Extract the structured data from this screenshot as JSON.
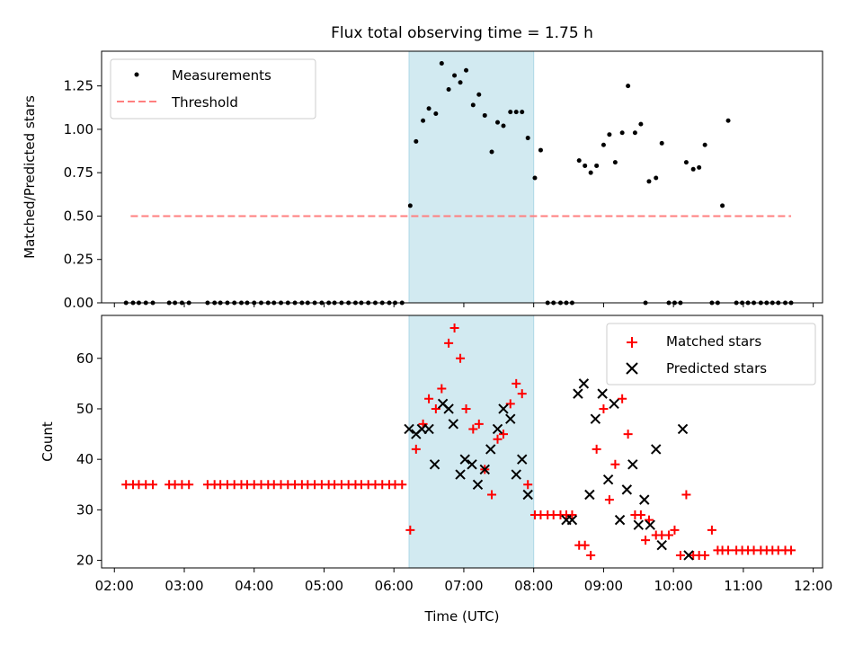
{
  "title": "Flux total observing time = 1.75 h",
  "chart_data": [
    {
      "type": "scatter",
      "ylabel": "Matched/Predicted stars",
      "ylim": [
        0,
        1.45
      ],
      "yticks": [
        "0.00",
        "0.25",
        "0.50",
        "0.75",
        "1.00",
        "1.25"
      ],
      "ytick_values": [
        0,
        0.25,
        0.5,
        0.75,
        1.0,
        1.25
      ],
      "xlim": [
        "01:49",
        "12:08"
      ],
      "shaded_region": {
        "from": "06:13",
        "to": "08:00",
        "color": "#add8e6"
      },
      "legend": {
        "placement": "top-left",
        "entries": [
          {
            "label": "Measurements",
            "marker": "dot",
            "color": "#000000"
          },
          {
            "label": "Threshold",
            "marker": "dashed-line",
            "color": "#ff7f7f"
          }
        ]
      },
      "threshold": {
        "name": "Threshold",
        "value": 0.5,
        "from": "02:14",
        "to": "11:41"
      },
      "series": [
        {
          "name": "Measurements",
          "color": "#000000",
          "points": [
            [
              "02:10",
              0
            ],
            [
              "02:16",
              0
            ],
            [
              "02:21",
              0
            ],
            [
              "02:27",
              0
            ],
            [
              "02:33",
              0
            ],
            [
              "02:47",
              0
            ],
            [
              "02:52",
              0
            ],
            [
              "02:58",
              0
            ],
            [
              "03:04",
              0
            ],
            [
              "03:20",
              0
            ],
            [
              "03:26",
              0
            ],
            [
              "03:31",
              0
            ],
            [
              "03:37",
              0
            ],
            [
              "03:43",
              0
            ],
            [
              "03:49",
              0
            ],
            [
              "03:54",
              0
            ],
            [
              "04:00",
              0
            ],
            [
              "04:06",
              0
            ],
            [
              "04:12",
              0
            ],
            [
              "04:17",
              0
            ],
            [
              "04:23",
              0
            ],
            [
              "04:29",
              0
            ],
            [
              "04:35",
              0
            ],
            [
              "04:41",
              0
            ],
            [
              "04:46",
              0
            ],
            [
              "04:52",
              0
            ],
            [
              "04:58",
              0
            ],
            [
              "05:04",
              0
            ],
            [
              "05:09",
              0
            ],
            [
              "05:15",
              0
            ],
            [
              "05:21",
              0
            ],
            [
              "05:27",
              0
            ],
            [
              "05:32",
              0
            ],
            [
              "05:38",
              0
            ],
            [
              "05:44",
              0
            ],
            [
              "05:50",
              0
            ],
            [
              "05:56",
              0
            ],
            [
              "06:01",
              0
            ],
            [
              "06:07",
              0
            ],
            [
              "06:14",
              0.56
            ],
            [
              "06:19",
              0.93
            ],
            [
              "06:25",
              1.05
            ],
            [
              "06:30",
              1.12
            ],
            [
              "06:36",
              1.09
            ],
            [
              "06:41",
              1.38
            ],
            [
              "06:47",
              1.23
            ],
            [
              "06:52",
              1.31
            ],
            [
              "06:57",
              1.27
            ],
            [
              "07:02",
              1.34
            ],
            [
              "07:08",
              1.14
            ],
            [
              "07:13",
              1.2
            ],
            [
              "07:18",
              1.08
            ],
            [
              "07:24",
              0.87
            ],
            [
              "07:29",
              1.04
            ],
            [
              "07:34",
              1.02
            ],
            [
              "07:40",
              1.1
            ],
            [
              "07:45",
              1.1
            ],
            [
              "07:50",
              1.1
            ],
            [
              "07:55",
              0.95
            ],
            [
              "08:01",
              0.72
            ],
            [
              "08:06",
              0.88
            ],
            [
              "08:12",
              0
            ],
            [
              "08:17",
              0
            ],
            [
              "08:23",
              0
            ],
            [
              "08:28",
              0
            ],
            [
              "08:33",
              0
            ],
            [
              "08:39",
              0.82
            ],
            [
              "08:44",
              0.79
            ],
            [
              "08:49",
              0.75
            ],
            [
              "08:54",
              0.79
            ],
            [
              "09:00",
              0.91
            ],
            [
              "09:05",
              0.97
            ],
            [
              "09:10",
              0.81
            ],
            [
              "09:16",
              0.98
            ],
            [
              "09:21",
              1.25
            ],
            [
              "09:27",
              0.98
            ],
            [
              "09:32",
              1.03
            ],
            [
              "09:36",
              0
            ],
            [
              "09:39",
              0.7
            ],
            [
              "09:45",
              0.72
            ],
            [
              "09:50",
              0.92
            ],
            [
              "09:56",
              0
            ],
            [
              "10:01",
              0
            ],
            [
              "10:06",
              0
            ],
            [
              "10:11",
              0.81
            ],
            [
              "10:17",
              0.77
            ],
            [
              "10:22",
              0.78
            ],
            [
              "10:27",
              0.91
            ],
            [
              "10:33",
              0
            ],
            [
              "10:38",
              0
            ],
            [
              "10:42",
              0.56
            ],
            [
              "10:47",
              1.05
            ],
            [
              "10:54",
              0
            ],
            [
              "10:59",
              0
            ],
            [
              "11:04",
              0
            ],
            [
              "11:09",
              0
            ],
            [
              "11:15",
              0
            ],
            [
              "11:20",
              0
            ],
            [
              "11:25",
              0
            ],
            [
              "11:30",
              0
            ],
            [
              "11:36",
              0
            ],
            [
              "11:41",
              0
            ]
          ]
        }
      ]
    },
    {
      "type": "scatter",
      "xlabel": "Time (UTC)",
      "ylabel": "Count",
      "ylim": [
        18.5,
        68.5
      ],
      "yticks": [
        "20",
        "30",
        "40",
        "50",
        "60"
      ],
      "ytick_values": [
        20,
        30,
        40,
        50,
        60
      ],
      "xlim": [
        "01:49",
        "12:08"
      ],
      "xticks": [
        "02:00",
        "03:00",
        "04:00",
        "05:00",
        "06:00",
        "07:00",
        "08:00",
        "09:00",
        "10:00",
        "11:00",
        "12:00"
      ],
      "shaded_region": {
        "from": "06:13",
        "to": "08:00",
        "color": "#add8e6"
      },
      "legend": {
        "placement": "top-right",
        "entries": [
          {
            "label": "Matched stars",
            "marker": "plus",
            "color": "#ff0000"
          },
          {
            "label": "Predicted stars",
            "marker": "x",
            "color": "#000000"
          }
        ]
      },
      "series": [
        {
          "name": "Matched stars",
          "color": "#ff0000",
          "marker": "plus",
          "points": [
            [
              "02:10",
              35
            ],
            [
              "02:16",
              35
            ],
            [
              "02:21",
              35
            ],
            [
              "02:27",
              35
            ],
            [
              "02:33",
              35
            ],
            [
              "02:47",
              35
            ],
            [
              "02:52",
              35
            ],
            [
              "02:58",
              35
            ],
            [
              "03:04",
              35
            ],
            [
              "03:20",
              35
            ],
            [
              "03:26",
              35
            ],
            [
              "03:31",
              35
            ],
            [
              "03:37",
              35
            ],
            [
              "03:43",
              35
            ],
            [
              "03:49",
              35
            ],
            [
              "03:54",
              35
            ],
            [
              "04:00",
              35
            ],
            [
              "04:06",
              35
            ],
            [
              "04:12",
              35
            ],
            [
              "04:17",
              35
            ],
            [
              "04:23",
              35
            ],
            [
              "04:29",
              35
            ],
            [
              "04:35",
              35
            ],
            [
              "04:41",
              35
            ],
            [
              "04:46",
              35
            ],
            [
              "04:52",
              35
            ],
            [
              "04:58",
              35
            ],
            [
              "05:04",
              35
            ],
            [
              "05:09",
              35
            ],
            [
              "05:15",
              35
            ],
            [
              "05:21",
              35
            ],
            [
              "05:27",
              35
            ],
            [
              "05:32",
              35
            ],
            [
              "05:38",
              35
            ],
            [
              "05:44",
              35
            ],
            [
              "05:50",
              35
            ],
            [
              "05:56",
              35
            ],
            [
              "06:01",
              35
            ],
            [
              "06:07",
              35
            ],
            [
              "06:14",
              26
            ],
            [
              "06:19",
              42
            ],
            [
              "06:25",
              47
            ],
            [
              "06:30",
              52
            ],
            [
              "06:36",
              50
            ],
            [
              "06:41",
              54
            ],
            [
              "06:47",
              63
            ],
            [
              "06:52",
              66
            ],
            [
              "06:57",
              60
            ],
            [
              "07:02",
              50
            ],
            [
              "07:08",
              46
            ],
            [
              "07:13",
              47
            ],
            [
              "07:18",
              38
            ],
            [
              "07:24",
              33
            ],
            [
              "07:29",
              44
            ],
            [
              "07:34",
              45
            ],
            [
              "07:40",
              51
            ],
            [
              "07:45",
              55
            ],
            [
              "07:50",
              53
            ],
            [
              "07:55",
              35
            ],
            [
              "08:01",
              29
            ],
            [
              "08:06",
              29
            ],
            [
              "08:12",
              29
            ],
            [
              "08:17",
              29
            ],
            [
              "08:23",
              29
            ],
            [
              "08:28",
              29
            ],
            [
              "08:33",
              29
            ],
            [
              "08:39",
              23
            ],
            [
              "08:44",
              23
            ],
            [
              "08:49",
              21
            ],
            [
              "08:54",
              42
            ],
            [
              "09:00",
              50
            ],
            [
              "09:05",
              32
            ],
            [
              "09:10",
              39
            ],
            [
              "09:16",
              52
            ],
            [
              "09:21",
              45
            ],
            [
              "09:27",
              29
            ],
            [
              "09:32",
              29
            ],
            [
              "09:36",
              24
            ],
            [
              "09:39",
              28
            ],
            [
              "09:45",
              25
            ],
            [
              "09:50",
              25
            ],
            [
              "09:56",
              25
            ],
            [
              "10:01",
              26
            ],
            [
              "10:06",
              21
            ],
            [
              "10:11",
              33
            ],
            [
              "10:17",
              21
            ],
            [
              "10:22",
              21
            ],
            [
              "10:27",
              21
            ],
            [
              "10:33",
              26
            ],
            [
              "10:38",
              22
            ],
            [
              "10:42",
              22
            ],
            [
              "10:47",
              22
            ],
            [
              "10:54",
              22
            ],
            [
              "10:59",
              22
            ],
            [
              "11:04",
              22
            ],
            [
              "11:09",
              22
            ],
            [
              "11:15",
              22
            ],
            [
              "11:20",
              22
            ],
            [
              "11:25",
              22
            ],
            [
              "11:30",
              22
            ],
            [
              "11:36",
              22
            ],
            [
              "11:41",
              22
            ]
          ]
        },
        {
          "name": "Predicted stars",
          "color": "#000000",
          "marker": "x",
          "points": [
            [
              "06:13",
              46
            ],
            [
              "06:19",
              45
            ],
            [
              "06:24",
              46
            ],
            [
              "06:30",
              46
            ],
            [
              "06:35",
              39
            ],
            [
              "06:42",
              51
            ],
            [
              "06:47",
              50
            ],
            [
              "06:51",
              47
            ],
            [
              "06:57",
              37
            ],
            [
              "07:01",
              40
            ],
            [
              "07:07",
              39
            ],
            [
              "07:12",
              35
            ],
            [
              "07:18",
              38
            ],
            [
              "07:23",
              42
            ],
            [
              "07:29",
              46
            ],
            [
              "07:34",
              50
            ],
            [
              "07:40",
              48
            ],
            [
              "07:45",
              37
            ],
            [
              "07:50",
              40
            ],
            [
              "07:55",
              33
            ],
            [
              "08:28",
              28
            ],
            [
              "08:33",
              28
            ],
            [
              "08:38",
              53
            ],
            [
              "08:43",
              55
            ],
            [
              "08:48",
              33
            ],
            [
              "08:53",
              48
            ],
            [
              "08:59",
              53
            ],
            [
              "09:04",
              36
            ],
            [
              "09:09",
              51
            ],
            [
              "09:14",
              28
            ],
            [
              "09:20",
              34
            ],
            [
              "09:25",
              39
            ],
            [
              "09:30",
              27
            ],
            [
              "09:35",
              32
            ],
            [
              "09:40",
              27
            ],
            [
              "09:45",
              42
            ],
            [
              "09:50",
              23
            ],
            [
              "10:08",
              46
            ],
            [
              "10:13",
              21
            ]
          ]
        }
      ]
    }
  ]
}
